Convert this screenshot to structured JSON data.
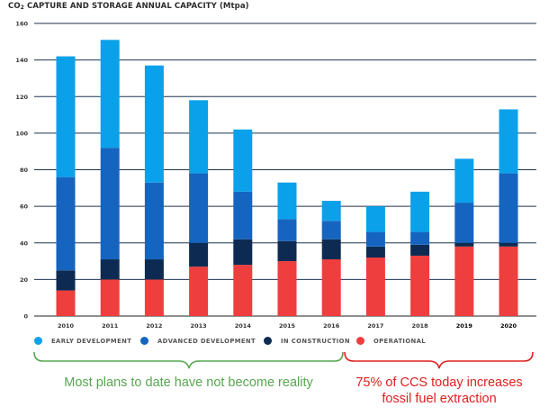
{
  "chart_data": {
    "type": "bar",
    "stacked": true,
    "title_prefix": "CO",
    "title_sub": "2",
    "title_suffix": " CAPTURE AND STORAGE ANNUAL CAPACITY (Mtpa)",
    "categories": [
      "2010",
      "2011",
      "2012",
      "2013",
      "2014",
      "2015",
      "2016",
      "2017",
      "2018",
      "2019",
      "2020"
    ],
    "bold_categories": [
      "2019",
      "2020"
    ],
    "y_ticks": [
      "0",
      "20",
      "40",
      "60",
      "80",
      "100",
      "120",
      "140",
      "160"
    ],
    "ylim": [
      0,
      160
    ],
    "grid": true,
    "legend_position": "bottom",
    "series": [
      {
        "name": "OPERATIONAL",
        "color": "#ee3e3e",
        "values": [
          14,
          20,
          20,
          27,
          28,
          30,
          31,
          32,
          33,
          38,
          38
        ]
      },
      {
        "name": "IN CONSTRUCTION",
        "color": "#0d2b52",
        "values": [
          11,
          11,
          11,
          13,
          14,
          11,
          11,
          6,
          6,
          2,
          2
        ]
      },
      {
        "name": "ADVANCED DEVELOPMENT",
        "color": "#1565c0",
        "values": [
          51,
          61,
          42,
          38,
          26,
          12,
          10,
          8,
          7,
          22,
          38
        ]
      },
      {
        "name": "EARLY DEVELOPMENT",
        "color": "#0ba1ea",
        "values": [
          66,
          59,
          64,
          40,
          34,
          20,
          11,
          14,
          22,
          24,
          35
        ]
      }
    ],
    "legend": [
      {
        "label": "EARLY DEVELOPMENT",
        "color": "#0ba1ea"
      },
      {
        "label": "ADVANCED DEVELOPMENT",
        "color": "#1565c0"
      },
      {
        "label": "IN CONSTRUCTION",
        "color": "#0d2b52"
      },
      {
        "label": "OPERATIONAL",
        "color": "#ee3e3e"
      }
    ]
  },
  "annotations": {
    "left_text": "Most plans to date have not become reality",
    "left_color": "#55a84f",
    "right_line1": "75% of CCS today increases",
    "right_line2": "fossil fuel extraction",
    "right_color": "#e02020"
  }
}
